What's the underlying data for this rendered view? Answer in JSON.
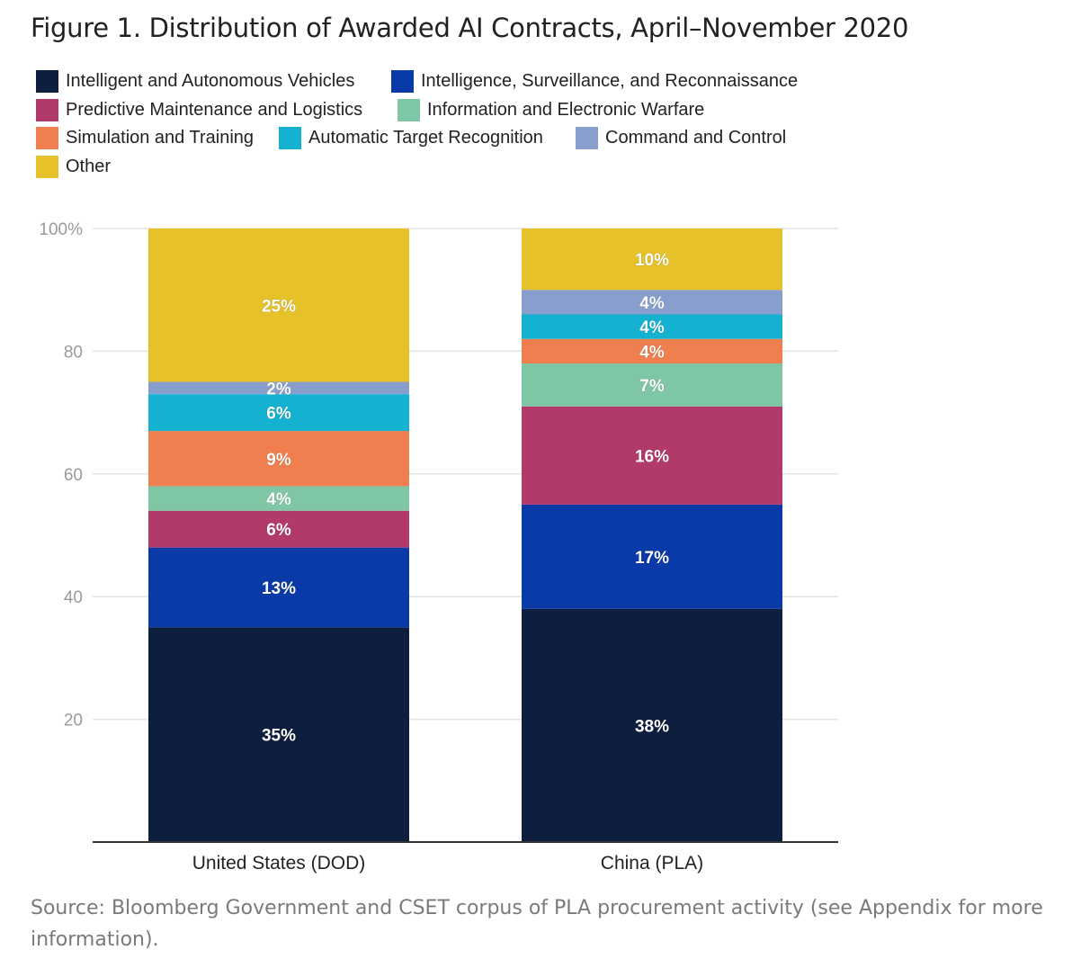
{
  "figure": {
    "title": "Figure 1. Distribution of Awarded AI Contracts, April–November 2020",
    "source": "Source: Bloomberg Government and CSET corpus of PLA procurement activity (see Appendix for more information)."
  },
  "colors": {
    "Intelligent and Autonomous Vehicles": "#0d1e3e",
    "Intelligence, Surveillance, and Reconnaissance": "#0a3aa8",
    "Predictive Maintenance and Logistics": "#b23a6b",
    "Information and Electronic Warfare": "#7fc6a4",
    "Simulation and Training": "#ef7f4f",
    "Automatic Target Recognition": "#15b1d1",
    "Command and Control": "#889fcd",
    "Other": "#e6c12a"
  },
  "chart_data": {
    "type": "bar",
    "stacked": true,
    "categories": [
      "United States (DOD)",
      "China (PLA)"
    ],
    "series": [
      {
        "name": "Intelligent and Autonomous Vehicles",
        "values": [
          35,
          38
        ],
        "labels": [
          "35%",
          "38%"
        ]
      },
      {
        "name": "Intelligence, Surveillance, and Reconnaissance",
        "values": [
          13,
          17
        ],
        "labels": [
          "13%",
          "17%"
        ]
      },
      {
        "name": "Predictive Maintenance and Logistics",
        "values": [
          6,
          16
        ],
        "labels": [
          "6%",
          "16%"
        ]
      },
      {
        "name": "Information and Electronic Warfare",
        "values": [
          4,
          7
        ],
        "labels": [
          "4%",
          "7%"
        ]
      },
      {
        "name": "Simulation and Training",
        "values": [
          9,
          4
        ],
        "labels": [
          "9%",
          "4%"
        ]
      },
      {
        "name": "Automatic Target Recognition",
        "values": [
          6,
          4
        ],
        "labels": [
          "6%",
          "4%"
        ]
      },
      {
        "name": "Command and Control",
        "values": [
          2,
          4
        ],
        "labels": [
          "2%",
          "4%"
        ]
      },
      {
        "name": "Other",
        "values": [
          25,
          10
        ],
        "labels": [
          "25%",
          "10%"
        ]
      }
    ],
    "ylim": [
      0,
      100
    ],
    "yticks": [
      20,
      40,
      60,
      80,
      100
    ],
    "ytick_labels": [
      "20",
      "40",
      "60",
      "80",
      "100%"
    ],
    "grid": true,
    "legend_position": "top"
  }
}
